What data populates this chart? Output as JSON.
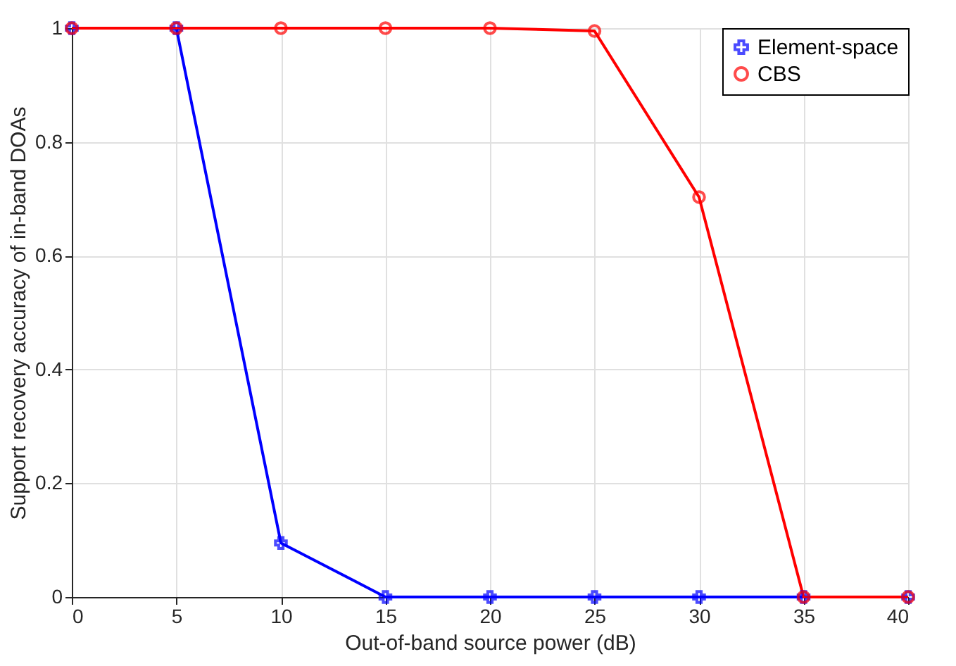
{
  "chart_data": {
    "type": "line",
    "xlabel": "Out-of-band source power (dB)",
    "ylabel": "Support recovery accuracy of in-band DOAs",
    "x": [
      0,
      5,
      10,
      15,
      20,
      25,
      30,
      35,
      40
    ],
    "series": [
      {
        "name": "Element-space",
        "color": "#0000ff",
        "marker": "cross",
        "values": [
          1,
          1,
          0.095,
          0,
          0,
          0,
          0,
          0,
          0
        ]
      },
      {
        "name": "CBS",
        "color": "#ff0000",
        "marker": "circle",
        "values": [
          1,
          1,
          1,
          1,
          1,
          0.995,
          0.703,
          0,
          0
        ]
      }
    ],
    "xlim": [
      0,
      40
    ],
    "xticks": [
      0,
      5,
      10,
      15,
      20,
      25,
      30,
      35,
      40
    ],
    "ylim": [
      0,
      1
    ],
    "yticks": [
      0,
      0.2,
      0.4,
      0.6,
      0.8,
      1
    ],
    "grid": true,
    "legend": "top right",
    "line_style": "solid"
  }
}
